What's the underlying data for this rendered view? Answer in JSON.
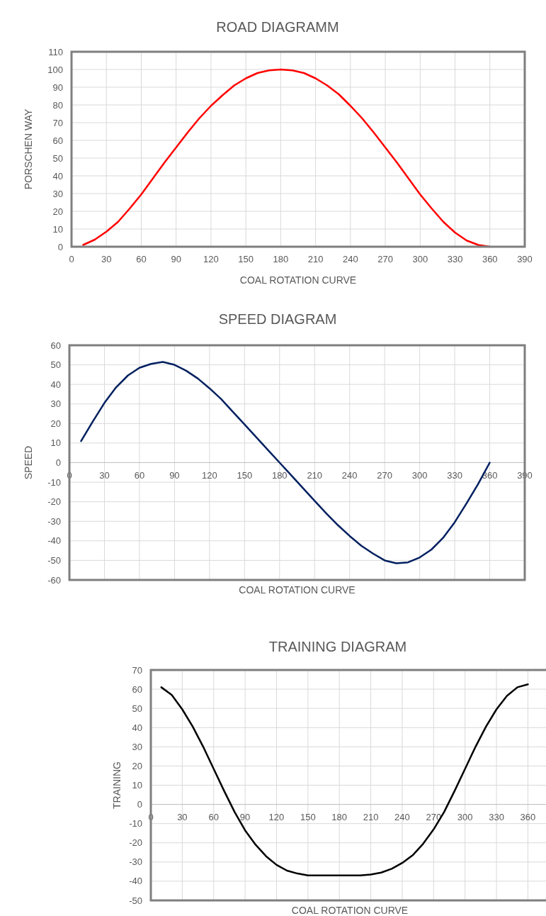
{
  "chart_data": [
    {
      "type": "line",
      "title": "ROAD DIAGRAMM",
      "xlabel": "COAL ROTATION CURVE",
      "ylabel": "PORSCHEN WAY",
      "color": "#ff0000",
      "grid": true,
      "xlim": [
        0,
        390
      ],
      "ylim": [
        0,
        110
      ],
      "xticks": [
        0,
        30,
        60,
        90,
        120,
        150,
        180,
        210,
        240,
        270,
        300,
        330,
        360,
        390
      ],
      "yticks": [
        0,
        10,
        20,
        30,
        40,
        50,
        60,
        70,
        80,
        90,
        100,
        110
      ],
      "x": [
        10,
        20,
        30,
        40,
        50,
        60,
        70,
        80,
        90,
        100,
        110,
        120,
        130,
        140,
        150,
        160,
        170,
        180,
        190,
        200,
        210,
        220,
        230,
        240,
        250,
        260,
        270,
        280,
        290,
        300,
        310,
        320,
        330,
        340,
        350,
        360
      ],
      "values": [
        1,
        4,
        8.5,
        14,
        21.5,
        29.5,
        38.5,
        47.5,
        56,
        64.5,
        72.5,
        79.5,
        85.5,
        91,
        95,
        98,
        99.5,
        100,
        99.5,
        98,
        95,
        91,
        86,
        79.5,
        72.5,
        64.5,
        56,
        47.5,
        38.5,
        29.5,
        21.5,
        14,
        8,
        3.5,
        1,
        0
      ]
    },
    {
      "type": "line",
      "title": "SPEED DIAGRAM",
      "xlabel": "COAL ROTATION CURVE",
      "ylabel": "SPEED",
      "color": "#002060",
      "grid": true,
      "xlim": [
        0,
        390
      ],
      "ylim": [
        -60,
        60
      ],
      "xticks": [
        0,
        30,
        60,
        90,
        120,
        150,
        180,
        210,
        240,
        270,
        300,
        330,
        360,
        390
      ],
      "yticks": [
        -60,
        -50,
        -40,
        -30,
        -20,
        -10,
        0,
        10,
        20,
        30,
        40,
        50,
        60
      ],
      "x": [
        10,
        20,
        30,
        40,
        50,
        60,
        70,
        80,
        90,
        100,
        110,
        120,
        130,
        140,
        150,
        160,
        170,
        180,
        190,
        200,
        210,
        220,
        230,
        240,
        250,
        260,
        270,
        280,
        290,
        300,
        310,
        320,
        330,
        340,
        350,
        360
      ],
      "values": [
        11,
        21,
        30.5,
        38.5,
        44.5,
        48.5,
        50.5,
        51.5,
        50,
        47,
        43,
        38,
        32.5,
        26,
        19.5,
        13,
        6.5,
        0,
        -6.5,
        -13,
        -19.5,
        -26,
        -32,
        -37.5,
        -42.5,
        -46.5,
        -50,
        -51.5,
        -51,
        -48.5,
        -44.5,
        -38.5,
        -30.5,
        -21,
        -11,
        0
      ]
    },
    {
      "type": "line",
      "title": "TRAINING DIAGRAM",
      "xlabel": "COAL ROTATION CURVE",
      "ylabel": "TRAINING",
      "color": "#000000",
      "grid": true,
      "xlim": [
        0,
        380
      ],
      "ylim": [
        -50,
        70
      ],
      "xticks": [
        0,
        30,
        60,
        90,
        120,
        150,
        180,
        210,
        240,
        270,
        300,
        330,
        360
      ],
      "yticks": [
        -50,
        -40,
        -30,
        -20,
        -10,
        0,
        10,
        20,
        30,
        40,
        50,
        60,
        70
      ],
      "x": [
        10,
        20,
        30,
        40,
        50,
        60,
        70,
        80,
        90,
        100,
        110,
        120,
        130,
        140,
        150,
        160,
        170,
        180,
        190,
        200,
        210,
        220,
        230,
        240,
        250,
        260,
        270,
        280,
        290,
        300,
        310,
        320,
        330,
        340,
        350,
        360
      ],
      "values": [
        61,
        57,
        49.5,
        40.5,
        30,
        18.5,
        7,
        -4,
        -13.5,
        -21,
        -27,
        -31.5,
        -34.5,
        -36,
        -37,
        -37,
        -37,
        -37,
        -37,
        -37,
        -36.5,
        -35.5,
        -33.5,
        -30.5,
        -26.5,
        -20.5,
        -13,
        -4,
        7,
        18.5,
        30,
        40.5,
        49.5,
        56.5,
        61,
        62.5
      ]
    }
  ]
}
